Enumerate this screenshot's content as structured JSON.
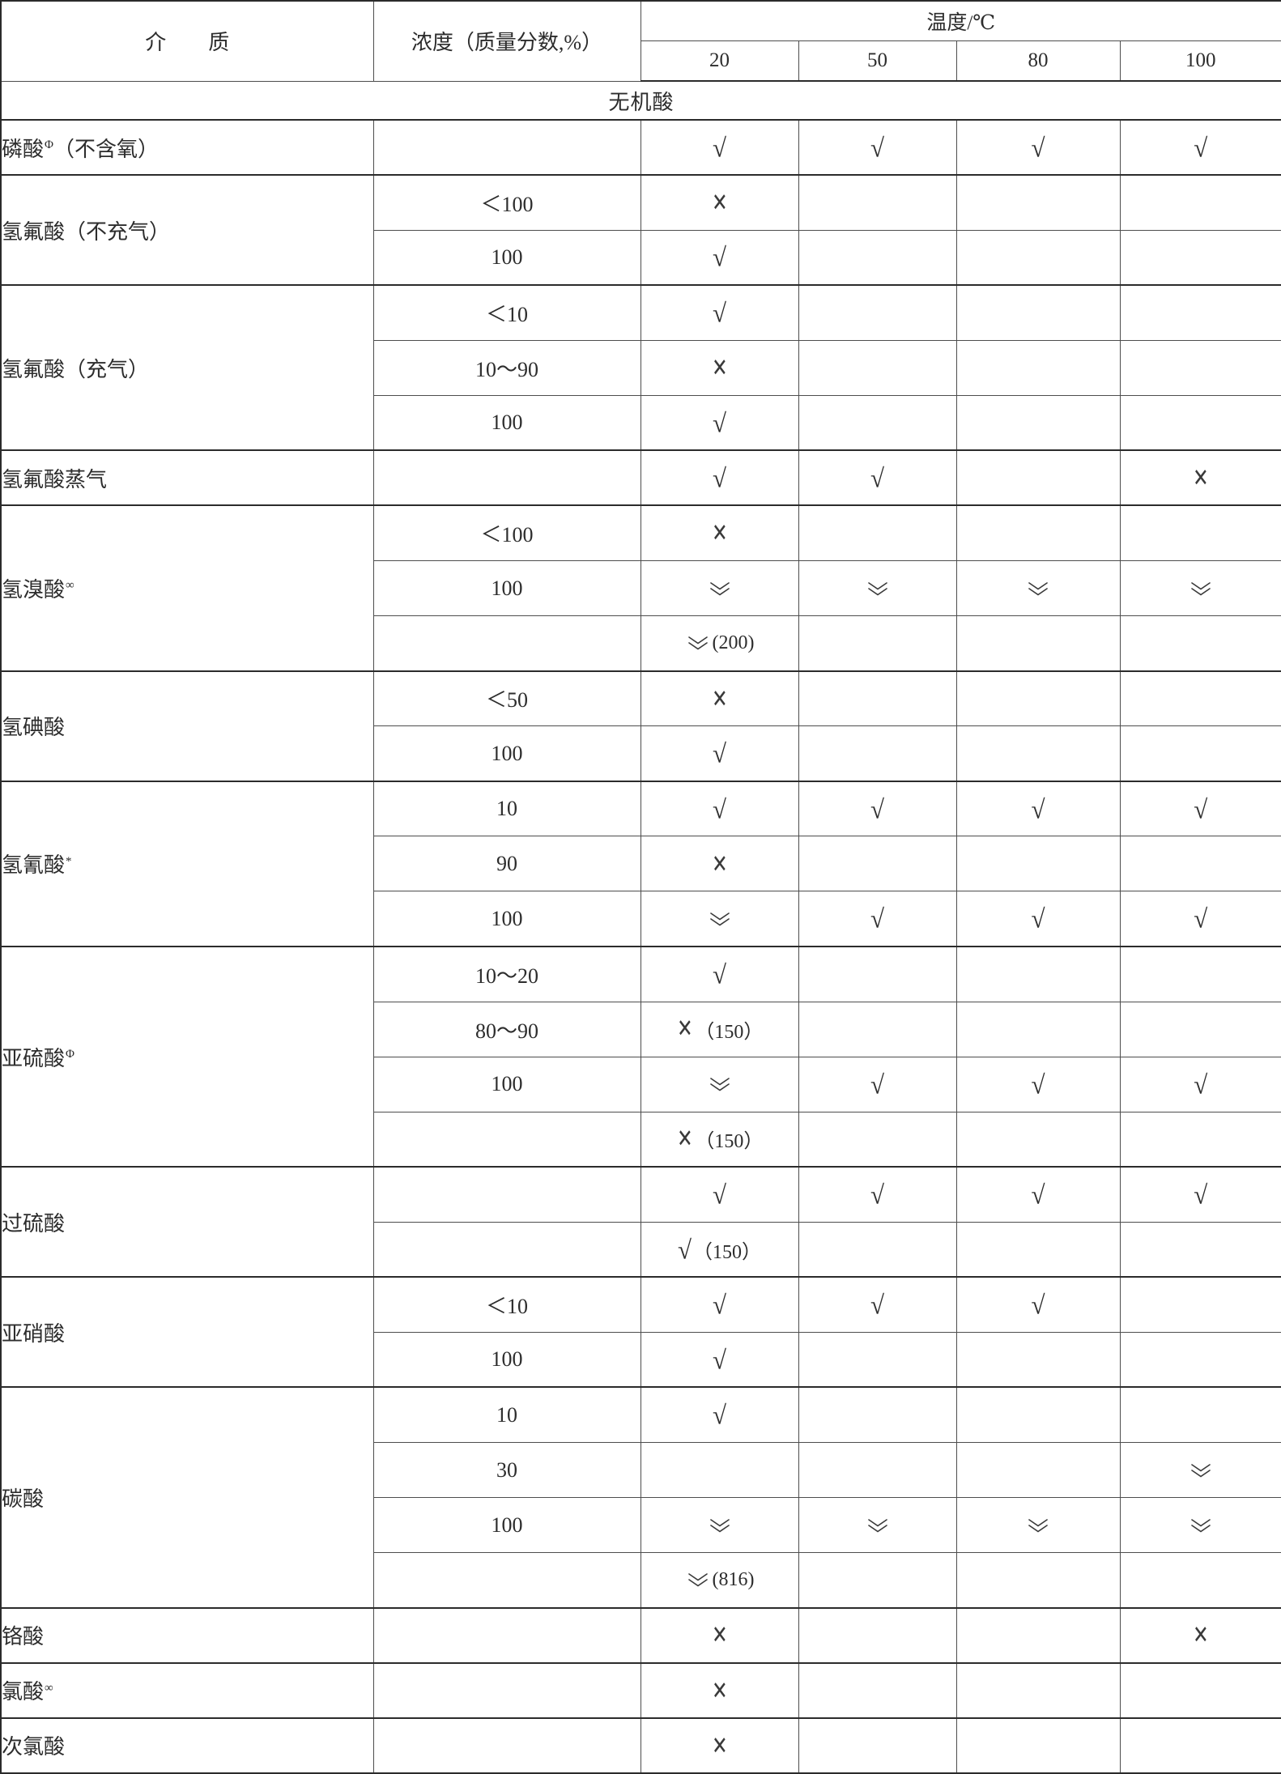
{
  "header": {
    "medium": "介　　质",
    "concentration": "浓度（质量分数,%）",
    "temperature": "温度/℃",
    "temperatures": [
      "20",
      "50",
      "80",
      "100"
    ]
  },
  "section": {
    "label": "无机酸"
  },
  "legend": {
    "check": "√",
    "cross": "✕",
    "double_chevron_down": "double-chevron-down"
  },
  "table": {
    "groups": [
      {
        "medium": "磷酸",
        "sup": "Φ",
        "suffix": "（不含氧）",
        "rows": [
          {
            "conc": "",
            "cells": [
              "check",
              "check",
              "check",
              "check"
            ]
          }
        ]
      },
      {
        "medium": "氢氟酸（不充气）",
        "sup": "",
        "suffix": "",
        "rows": [
          {
            "conc": "＜100",
            "cells": [
              "cross",
              "",
              "",
              ""
            ]
          },
          {
            "conc": "100",
            "cells": [
              "check",
              "",
              "",
              ""
            ]
          }
        ]
      },
      {
        "medium": "氢氟酸（充气）",
        "sup": "",
        "suffix": "",
        "rows": [
          {
            "conc": "＜10",
            "cells": [
              "check",
              "",
              "",
              ""
            ]
          },
          {
            "conc": "10～90",
            "cells": [
              "cross",
              "",
              "",
              ""
            ]
          },
          {
            "conc": "100",
            "cells": [
              "check",
              "",
              "",
              ""
            ]
          }
        ]
      },
      {
        "medium": "氢氟酸蒸气",
        "sup": "",
        "suffix": "",
        "rows": [
          {
            "conc": "",
            "cells": [
              "check",
              "check",
              "",
              "cross"
            ]
          }
        ]
      },
      {
        "medium": "氢溴酸",
        "sup": "∞",
        "suffix": "",
        "rows": [
          {
            "conc": "＜100",
            "cells": [
              "cross",
              "",
              "",
              ""
            ]
          },
          {
            "conc": "100",
            "cells": [
              "ddown",
              "ddown",
              "ddown",
              "ddown"
            ]
          },
          {
            "conc": "",
            "cells": [
              {
                "sym": "ddown",
                "note": "(200)"
              },
              "",
              "",
              ""
            ]
          }
        ]
      },
      {
        "medium": "氢碘酸",
        "sup": "",
        "suffix": "",
        "rows": [
          {
            "conc": "＜50",
            "cells": [
              "cross",
              "",
              "",
              ""
            ]
          },
          {
            "conc": "100",
            "cells": [
              "check",
              "",
              "",
              ""
            ]
          }
        ]
      },
      {
        "medium": "氢氰酸",
        "sup": "*",
        "suffix": "",
        "rows": [
          {
            "conc": "10",
            "cells": [
              "check",
              "check",
              "check",
              "check"
            ]
          },
          {
            "conc": "90",
            "cells": [
              "cross",
              "",
              "",
              ""
            ]
          },
          {
            "conc": "100",
            "cells": [
              "ddown",
              "check",
              "check",
              "check"
            ]
          }
        ]
      },
      {
        "medium": "亚硫酸",
        "sup": "Φ",
        "suffix": "",
        "rows": [
          {
            "conc": "10～20",
            "cells": [
              "check",
              "",
              "",
              ""
            ]
          },
          {
            "conc": "80～90",
            "cells": [
              {
                "sym": "cross",
                "note": "（150）"
              },
              "",
              "",
              ""
            ]
          },
          {
            "conc": "100",
            "cells": [
              "ddown",
              "check",
              "check",
              "check"
            ]
          },
          {
            "conc": "",
            "cells": [
              {
                "sym": "cross",
                "note": "（150）"
              },
              "",
              "",
              ""
            ]
          }
        ]
      },
      {
        "medium": "过硫酸",
        "sup": "",
        "suffix": "",
        "rows": [
          {
            "conc": "",
            "cells": [
              "check",
              "check",
              "check",
              "check"
            ]
          },
          {
            "conc": "",
            "cells": [
              {
                "sym": "check",
                "note": "（150）"
              },
              "",
              "",
              ""
            ]
          }
        ]
      },
      {
        "medium": "亚硝酸",
        "sup": "",
        "suffix": "",
        "rows": [
          {
            "conc": "＜10",
            "cells": [
              "check",
              "check",
              "check",
              ""
            ]
          },
          {
            "conc": "100",
            "cells": [
              "check",
              "",
              "",
              ""
            ]
          }
        ]
      },
      {
        "medium": "碳酸",
        "sup": "",
        "suffix": "",
        "rows": [
          {
            "conc": "10",
            "cells": [
              "check",
              "",
              "",
              ""
            ]
          },
          {
            "conc": "30",
            "cells": [
              "",
              "",
              "",
              "ddown"
            ]
          },
          {
            "conc": "100",
            "cells": [
              "ddown",
              "ddown",
              "ddown",
              "ddown"
            ]
          },
          {
            "conc": "",
            "cells": [
              {
                "sym": "ddown",
                "note": "(816)"
              },
              "",
              "",
              ""
            ]
          }
        ]
      },
      {
        "medium": "铬酸",
        "sup": "",
        "suffix": "",
        "rows": [
          {
            "conc": "",
            "cells": [
              "cross",
              "",
              "",
              "cross"
            ]
          }
        ]
      },
      {
        "medium": "氯酸",
        "sup": "∞",
        "suffix": "",
        "rows": [
          {
            "conc": "",
            "cells": [
              "cross",
              "",
              "",
              ""
            ]
          }
        ]
      },
      {
        "medium": "次氯酸",
        "sup": "",
        "suffix": "",
        "rows": [
          {
            "conc": "",
            "cells": [
              "cross",
              "",
              "",
              ""
            ]
          }
        ]
      }
    ]
  }
}
